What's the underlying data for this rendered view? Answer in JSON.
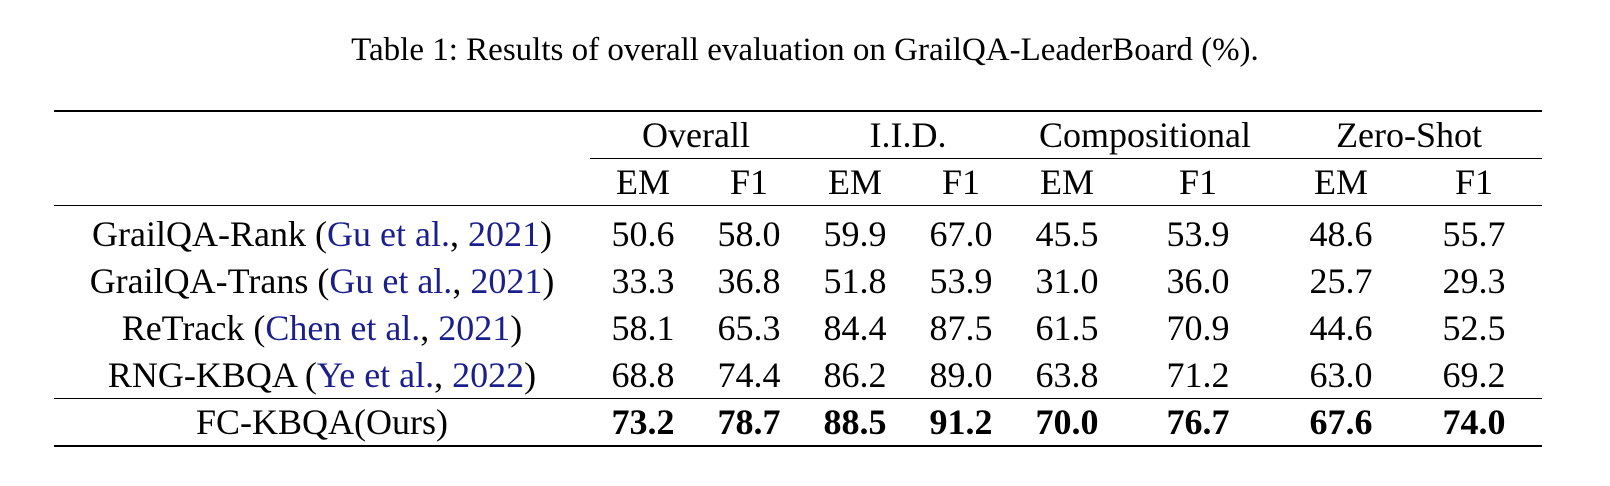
{
  "caption": "Table 1: Results of overall evaluation on GrailQA-LeaderBoard (%).",
  "groups": [
    "Overall",
    "I.I.D.",
    "Compositional",
    "Zero-Shot"
  ],
  "metrics": [
    "EM",
    "F1",
    "EM",
    "F1",
    "EM",
    "F1",
    "EM",
    "F1"
  ],
  "rows": [
    {
      "name": "GrailQA-Rank (",
      "cite_authors": "Gu et al.",
      "cite_sep": ", ",
      "cite_year": "2021",
      "close": ")",
      "values": [
        "50.6",
        "58.0",
        "59.9",
        "67.0",
        "45.5",
        "53.9",
        "48.6",
        "55.7"
      ]
    },
    {
      "name": "GrailQA-Trans (",
      "cite_authors": "Gu et al.",
      "cite_sep": ", ",
      "cite_year": "2021",
      "close": ")",
      "values": [
        "33.3",
        "36.8",
        "51.8",
        "53.9",
        "31.0",
        "36.0",
        "25.7",
        "29.3"
      ]
    },
    {
      "name": "ReTrack (",
      "cite_authors": "Chen et al.",
      "cite_sep": ", ",
      "cite_year": "2021",
      "close": ")",
      "values": [
        "58.1",
        "65.3",
        "84.4",
        "87.5",
        "61.5",
        "70.9",
        "44.6",
        "52.5"
      ]
    },
    {
      "name": "RNG-KBQA (",
      "cite_authors": "Ye et al.",
      "cite_sep": ", ",
      "cite_year": "2022",
      "close": ")",
      "values": [
        "68.8",
        "74.4",
        "86.2",
        "89.0",
        "63.8",
        "71.2",
        "63.0",
        "69.2"
      ]
    }
  ],
  "ours": {
    "name": "FC-KBQA(Ours)",
    "values": [
      "73.2",
      "78.7",
      "88.5",
      "91.2",
      "70.0",
      "76.7",
      "67.6",
      "74.0"
    ]
  }
}
